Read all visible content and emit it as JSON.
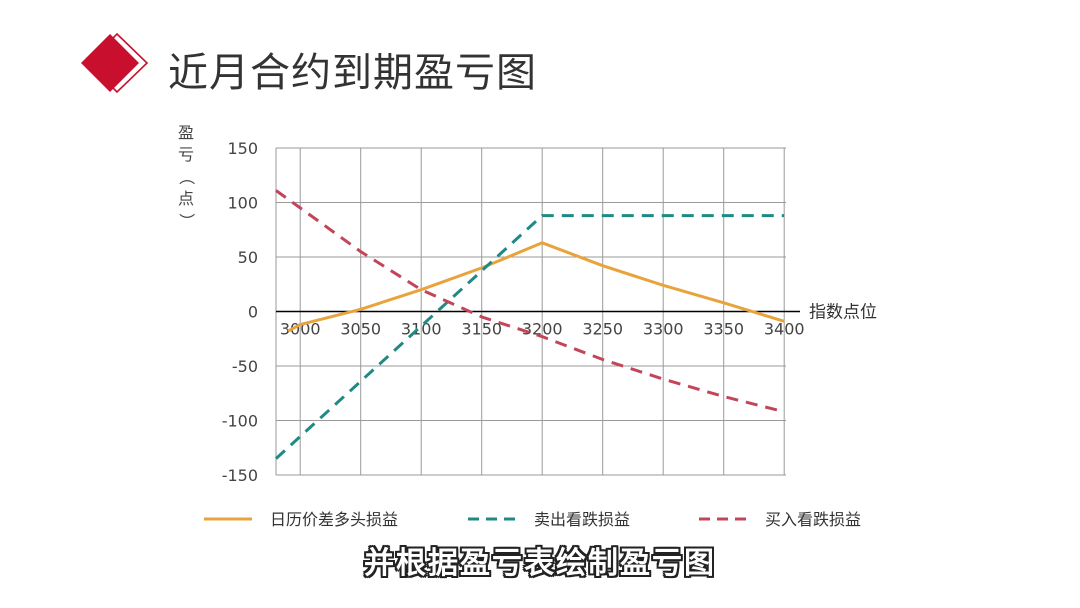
{
  "slide": {
    "title": "近月合约到期盈亏图",
    "subtitle": "并根据盈亏表绘制盈亏图"
  },
  "chart_data": {
    "type": "line",
    "ylabel": "盈亏（点）",
    "xlabel": "指数点位",
    "x_ticks": [
      "3000",
      "3050",
      "3100",
      "3150",
      "3200",
      "3250",
      "3300",
      "3350",
      "3400"
    ],
    "y_ticks": [
      "150",
      "100",
      "50",
      "0",
      "-50",
      "-100",
      "-150"
    ],
    "xlim": [
      2980,
      3400
    ],
    "ylim": [
      -150,
      150
    ],
    "grid": true,
    "legend_position": "bottom",
    "series": [
      {
        "name": "日历价差多头损益",
        "style": "solid",
        "color": "#e8a33c",
        "x": [
          2990,
          3000,
          3050,
          3100,
          3150,
          3200,
          3250,
          3300,
          3350,
          3400
        ],
        "y": [
          -18,
          -12,
          2,
          20,
          40,
          63,
          42,
          24,
          8,
          -9
        ]
      },
      {
        "name": "卖出看跌损益",
        "style": "dashed",
        "color": "#1f8a84",
        "x": [
          2980,
          3200,
          3400
        ],
        "y": [
          -135,
          88,
          88
        ]
      },
      {
        "name": "买入看跌损益",
        "style": "dashed",
        "color": "#c2455a",
        "x": [
          2980,
          3000,
          3050,
          3100,
          3150,
          3200,
          3250,
          3300,
          3350,
          3400
        ],
        "y": [
          111,
          95,
          55,
          20,
          -5,
          -23,
          -44,
          -62,
          -78,
          -92
        ]
      }
    ],
    "colors": {
      "accent": "#c8102e",
      "grid": "#9a9a9a",
      "axis": "#000000",
      "text": "#333333"
    }
  }
}
